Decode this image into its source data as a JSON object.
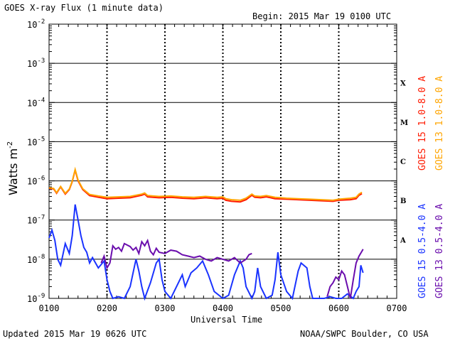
{
  "header": {
    "title": "GOES X-ray Flux (1 minute data)",
    "begin": "Begin: 2015 Mar 19 0100 UTC"
  },
  "footer": {
    "updated": "Updated 2015 Mar 19 0626 UTC",
    "credit": "NOAA/SWPC Boulder, CO USA"
  },
  "colors": {
    "goes15_long": "#ff1a00",
    "goes13_long": "#ffa500",
    "goes15_short": "#1a33ff",
    "goes13_short": "#6a0dad",
    "grid": "#000000"
  },
  "chart_data": {
    "type": "line",
    "xlabel": "Universal Time",
    "ylabel_main": "Watts m",
    "ylabel_exp": "-2",
    "x_unit": "UTC hour",
    "xlim": [
      1,
      7
    ],
    "ylim": [
      1e-09,
      0.01
    ],
    "y_scale": "log",
    "x_tick_labels": [
      "0100",
      "0200",
      "0300",
      "0400",
      "0500",
      "0600",
      "0700"
    ],
    "y_tick_labels": [
      {
        "base": "10",
        "exp": "-9"
      },
      {
        "base": "10",
        "exp": "-8"
      },
      {
        "base": "10",
        "exp": "-7"
      },
      {
        "base": "10",
        "exp": "-6"
      },
      {
        "base": "10",
        "exp": "-5"
      },
      {
        "base": "10",
        "exp": "-4"
      },
      {
        "base": "10",
        "exp": "-3"
      },
      {
        "base": "10",
        "exp": "-2"
      }
    ],
    "flare_classes": [
      {
        "label": "X",
        "min": 0.0001,
        "max": 0.001
      },
      {
        "label": "M",
        "min": 1e-05,
        "max": 0.0001
      },
      {
        "label": "C",
        "min": 1e-06,
        "max": 1e-05
      },
      {
        "label": "B",
        "min": 1e-07,
        "max": 1e-06
      },
      {
        "label": "A",
        "min": 1e-08,
        "max": 1e-07
      }
    ],
    "legend_placement": "right",
    "series": [
      {
        "name": "GOES 15 1.0-8.0 A",
        "color": "#ff1a00",
        "points": [
          [
            1.0,
            6.5e-07
          ],
          [
            1.08,
            6.2e-07
          ],
          [
            1.13,
            4.8e-07
          ],
          [
            1.2,
            7e-07
          ],
          [
            1.28,
            4.6e-07
          ],
          [
            1.35,
            6e-07
          ],
          [
            1.4,
            9.5e-07
          ],
          [
            1.45,
            1.9e-06
          ],
          [
            1.5,
            1e-06
          ],
          [
            1.58,
            6e-07
          ],
          [
            1.7,
            4.2e-07
          ],
          [
            1.85,
            3.8e-07
          ],
          [
            2.0,
            3.5e-07
          ],
          [
            2.2,
            3.6e-07
          ],
          [
            2.4,
            3.7e-07
          ],
          [
            2.6,
            4.3e-07
          ],
          [
            2.65,
            4.6e-07
          ],
          [
            2.7,
            3.9e-07
          ],
          [
            2.9,
            3.7e-07
          ],
          [
            3.1,
            3.8e-07
          ],
          [
            3.3,
            3.6e-07
          ],
          [
            3.5,
            3.5e-07
          ],
          [
            3.7,
            3.7e-07
          ],
          [
            3.9,
            3.5e-07
          ],
          [
            4.0,
            3.6e-07
          ],
          [
            4.05,
            3.2e-07
          ],
          [
            4.15,
            3e-07
          ],
          [
            4.3,
            2.9e-07
          ],
          [
            4.4,
            3.3e-07
          ],
          [
            4.5,
            4.3e-07
          ],
          [
            4.55,
            3.8e-07
          ],
          [
            4.65,
            3.7e-07
          ],
          [
            4.75,
            3.9e-07
          ],
          [
            4.9,
            3.5e-07
          ],
          [
            5.1,
            3.4e-07
          ],
          [
            5.3,
            3.3e-07
          ],
          [
            5.5,
            3.2e-07
          ],
          [
            5.7,
            3.1e-07
          ],
          [
            5.9,
            3e-07
          ],
          [
            6.0,
            3.2e-07
          ],
          [
            6.2,
            3.3e-07
          ],
          [
            6.3,
            3.5e-07
          ],
          [
            6.35,
            4.3e-07
          ],
          [
            6.4,
            4.7e-07
          ]
        ]
      },
      {
        "name": "GOES 13 1.0-8.0 A",
        "color": "#ffa500",
        "points": [
          [
            1.0,
            6.7e-07
          ],
          [
            1.08,
            6.4e-07
          ],
          [
            1.13,
            5e-07
          ],
          [
            1.2,
            7.2e-07
          ],
          [
            1.28,
            4.8e-07
          ],
          [
            1.35,
            6.2e-07
          ],
          [
            1.4,
            9.8e-07
          ],
          [
            1.45,
            1.95e-06
          ],
          [
            1.5,
            1.05e-06
          ],
          [
            1.58,
            6.3e-07
          ],
          [
            1.7,
            4.5e-07
          ],
          [
            1.85,
            4.1e-07
          ],
          [
            2.0,
            3.8e-07
          ],
          [
            2.2,
            3.9e-07
          ],
          [
            2.4,
            4e-07
          ],
          [
            2.6,
            4.6e-07
          ],
          [
            2.65,
            4.9e-07
          ],
          [
            2.7,
            4.2e-07
          ],
          [
            2.9,
            4e-07
          ],
          [
            3.1,
            4.1e-07
          ],
          [
            3.3,
            3.9e-07
          ],
          [
            3.5,
            3.8e-07
          ],
          [
            3.7,
            4e-07
          ],
          [
            3.9,
            3.8e-07
          ],
          [
            4.0,
            3.9e-07
          ],
          [
            4.05,
            3.5e-07
          ],
          [
            4.15,
            3.3e-07
          ],
          [
            4.3,
            3.2e-07
          ],
          [
            4.4,
            3.6e-07
          ],
          [
            4.5,
            4.6e-07
          ],
          [
            4.55,
            4.1e-07
          ],
          [
            4.65,
            4e-07
          ],
          [
            4.75,
            4.2e-07
          ],
          [
            4.9,
            3.8e-07
          ],
          [
            5.1,
            3.6e-07
          ],
          [
            5.3,
            3.5e-07
          ],
          [
            5.5,
            3.4e-07
          ],
          [
            5.7,
            3.3e-07
          ],
          [
            5.9,
            3.2e-07
          ],
          [
            6.0,
            3.4e-07
          ],
          [
            6.2,
            3.6e-07
          ],
          [
            6.3,
            3.8e-07
          ],
          [
            6.35,
            4.6e-07
          ],
          [
            6.4,
            5.1e-07
          ]
        ]
      },
      {
        "name": "GOES 15 0.5-4.0 A",
        "color": "#1a33ff",
        "points": [
          [
            1.0,
            3.5e-08
          ],
          [
            1.05,
            5.5e-08
          ],
          [
            1.1,
            3e-08
          ],
          [
            1.15,
            1e-08
          ],
          [
            1.2,
            7e-09
          ],
          [
            1.28,
            2.5e-08
          ],
          [
            1.35,
            1.4e-08
          ],
          [
            1.4,
            4e-08
          ],
          [
            1.45,
            2.5e-07
          ],
          [
            1.5,
            1e-07
          ],
          [
            1.55,
            4e-08
          ],
          [
            1.6,
            2e-08
          ],
          [
            1.65,
            1.5e-08
          ],
          [
            1.7,
            8e-09
          ],
          [
            1.75,
            1.1e-08
          ],
          [
            1.85,
            6e-09
          ],
          [
            1.95,
            9e-09
          ],
          [
            2.0,
            3e-09
          ],
          [
            2.05,
            1.5e-09
          ],
          [
            2.1,
            1e-09
          ],
          [
            2.2,
            1.1e-09
          ],
          [
            2.3,
            1e-09
          ],
          [
            2.4,
            2e-09
          ],
          [
            2.45,
            4.5e-09
          ],
          [
            2.5,
            1e-08
          ],
          [
            2.55,
            5e-09
          ],
          [
            2.6,
            2e-09
          ],
          [
            2.65,
            1e-09
          ],
          [
            2.75,
            2.5e-09
          ],
          [
            2.85,
            8e-09
          ],
          [
            2.9,
            1e-08
          ],
          [
            2.95,
            3e-09
          ],
          [
            3.0,
            1.5e-09
          ],
          [
            3.1,
            1e-09
          ],
          [
            3.2,
            2e-09
          ],
          [
            3.3,
            4e-09
          ],
          [
            3.35,
            2e-09
          ],
          [
            3.45,
            4.5e-09
          ],
          [
            3.55,
            6e-09
          ],
          [
            3.65,
            9e-09
          ],
          [
            3.75,
            4e-09
          ],
          [
            3.85,
            1.5e-09
          ],
          [
            4.0,
            1e-09
          ],
          [
            4.1,
            1.2e-09
          ],
          [
            4.2,
            4e-09
          ],
          [
            4.3,
            9e-09
          ],
          [
            4.35,
            6e-09
          ],
          [
            4.4,
            2e-09
          ],
          [
            4.5,
            1e-09
          ],
          [
            4.55,
            1.5e-09
          ],
          [
            4.6,
            6e-09
          ],
          [
            4.65,
            2e-09
          ],
          [
            4.75,
            1e-09
          ],
          [
            4.85,
            1.2e-09
          ],
          [
            4.9,
            3e-09
          ],
          [
            4.95,
            1.5e-08
          ],
          [
            5.0,
            4e-09
          ],
          [
            5.1,
            1.5e-09
          ],
          [
            5.2,
            1e-09
          ],
          [
            5.3,
            5e-09
          ],
          [
            5.35,
            8e-09
          ],
          [
            5.45,
            6e-09
          ],
          [
            5.5,
            2e-09
          ],
          [
            5.55,
            1e-09
          ],
          [
            5.6,
            1e-09
          ],
          [
            5.75,
            1e-09
          ],
          [
            5.85,
            1.1e-09
          ],
          [
            5.95,
            1e-09
          ],
          [
            6.05,
            1e-09
          ],
          [
            6.15,
            1.3e-09
          ],
          [
            6.25,
            1e-09
          ],
          [
            6.3,
            1.5e-09
          ],
          [
            6.35,
            2e-09
          ],
          [
            6.38,
            7e-09
          ],
          [
            6.42,
            4.5e-09
          ]
        ]
      },
      {
        "name": "GOES 13 0.5-4.0 A",
        "color": "#6a0dad",
        "points": [
          [
            1.9,
            8e-09
          ],
          [
            1.95,
            1.2e-08
          ],
          [
            2.0,
            6e-09
          ],
          [
            2.05,
            8e-09
          ],
          [
            2.1,
            2.2e-08
          ],
          [
            2.15,
            1.8e-08
          ],
          [
            2.2,
            2e-08
          ],
          [
            2.25,
            1.6e-08
          ],
          [
            2.3,
            2.5e-08
          ],
          [
            2.4,
            2.1e-08
          ],
          [
            2.45,
            1.7e-08
          ],
          [
            2.5,
            2e-08
          ],
          [
            2.55,
            1.4e-08
          ],
          [
            2.6,
            2.8e-08
          ],
          [
            2.65,
            2.2e-08
          ],
          [
            2.7,
            3e-08
          ],
          [
            2.75,
            1.6e-08
          ],
          [
            2.8,
            1.3e-08
          ],
          [
            2.85,
            1.9e-08
          ],
          [
            2.9,
            1.5e-08
          ],
          [
            3.0,
            1.4e-08
          ],
          [
            3.1,
            1.7e-08
          ],
          [
            3.2,
            1.6e-08
          ],
          [
            3.3,
            1.3e-08
          ],
          [
            3.4,
            1.2e-08
          ],
          [
            3.5,
            1.1e-08
          ],
          [
            3.6,
            1.2e-08
          ],
          [
            3.7,
            1e-08
          ],
          [
            3.8,
            9e-09
          ],
          [
            3.9,
            1.1e-08
          ],
          [
            4.0,
            1e-08
          ],
          [
            4.1,
            9e-09
          ],
          [
            4.2,
            1.1e-08
          ],
          [
            4.3,
            8e-09
          ],
          [
            4.4,
            1e-08
          ],
          [
            4.45,
            1.3e-08
          ],
          [
            4.5,
            1.4e-08
          ],
          [
            5.8,
            1.1e-09
          ],
          [
            5.85,
            2e-09
          ],
          [
            5.9,
            2.5e-09
          ],
          [
            5.95,
            3.5e-09
          ],
          [
            6.0,
            3e-09
          ],
          [
            6.05,
            5e-09
          ],
          [
            6.1,
            4e-09
          ],
          [
            6.15,
            2e-09
          ],
          [
            6.2,
            1e-09
          ],
          [
            6.25,
            3e-09
          ],
          [
            6.3,
            8e-09
          ],
          [
            6.35,
            1.2e-08
          ],
          [
            6.4,
            1.6e-08
          ],
          [
            6.42,
            1.8e-08
          ]
        ]
      }
    ]
  }
}
